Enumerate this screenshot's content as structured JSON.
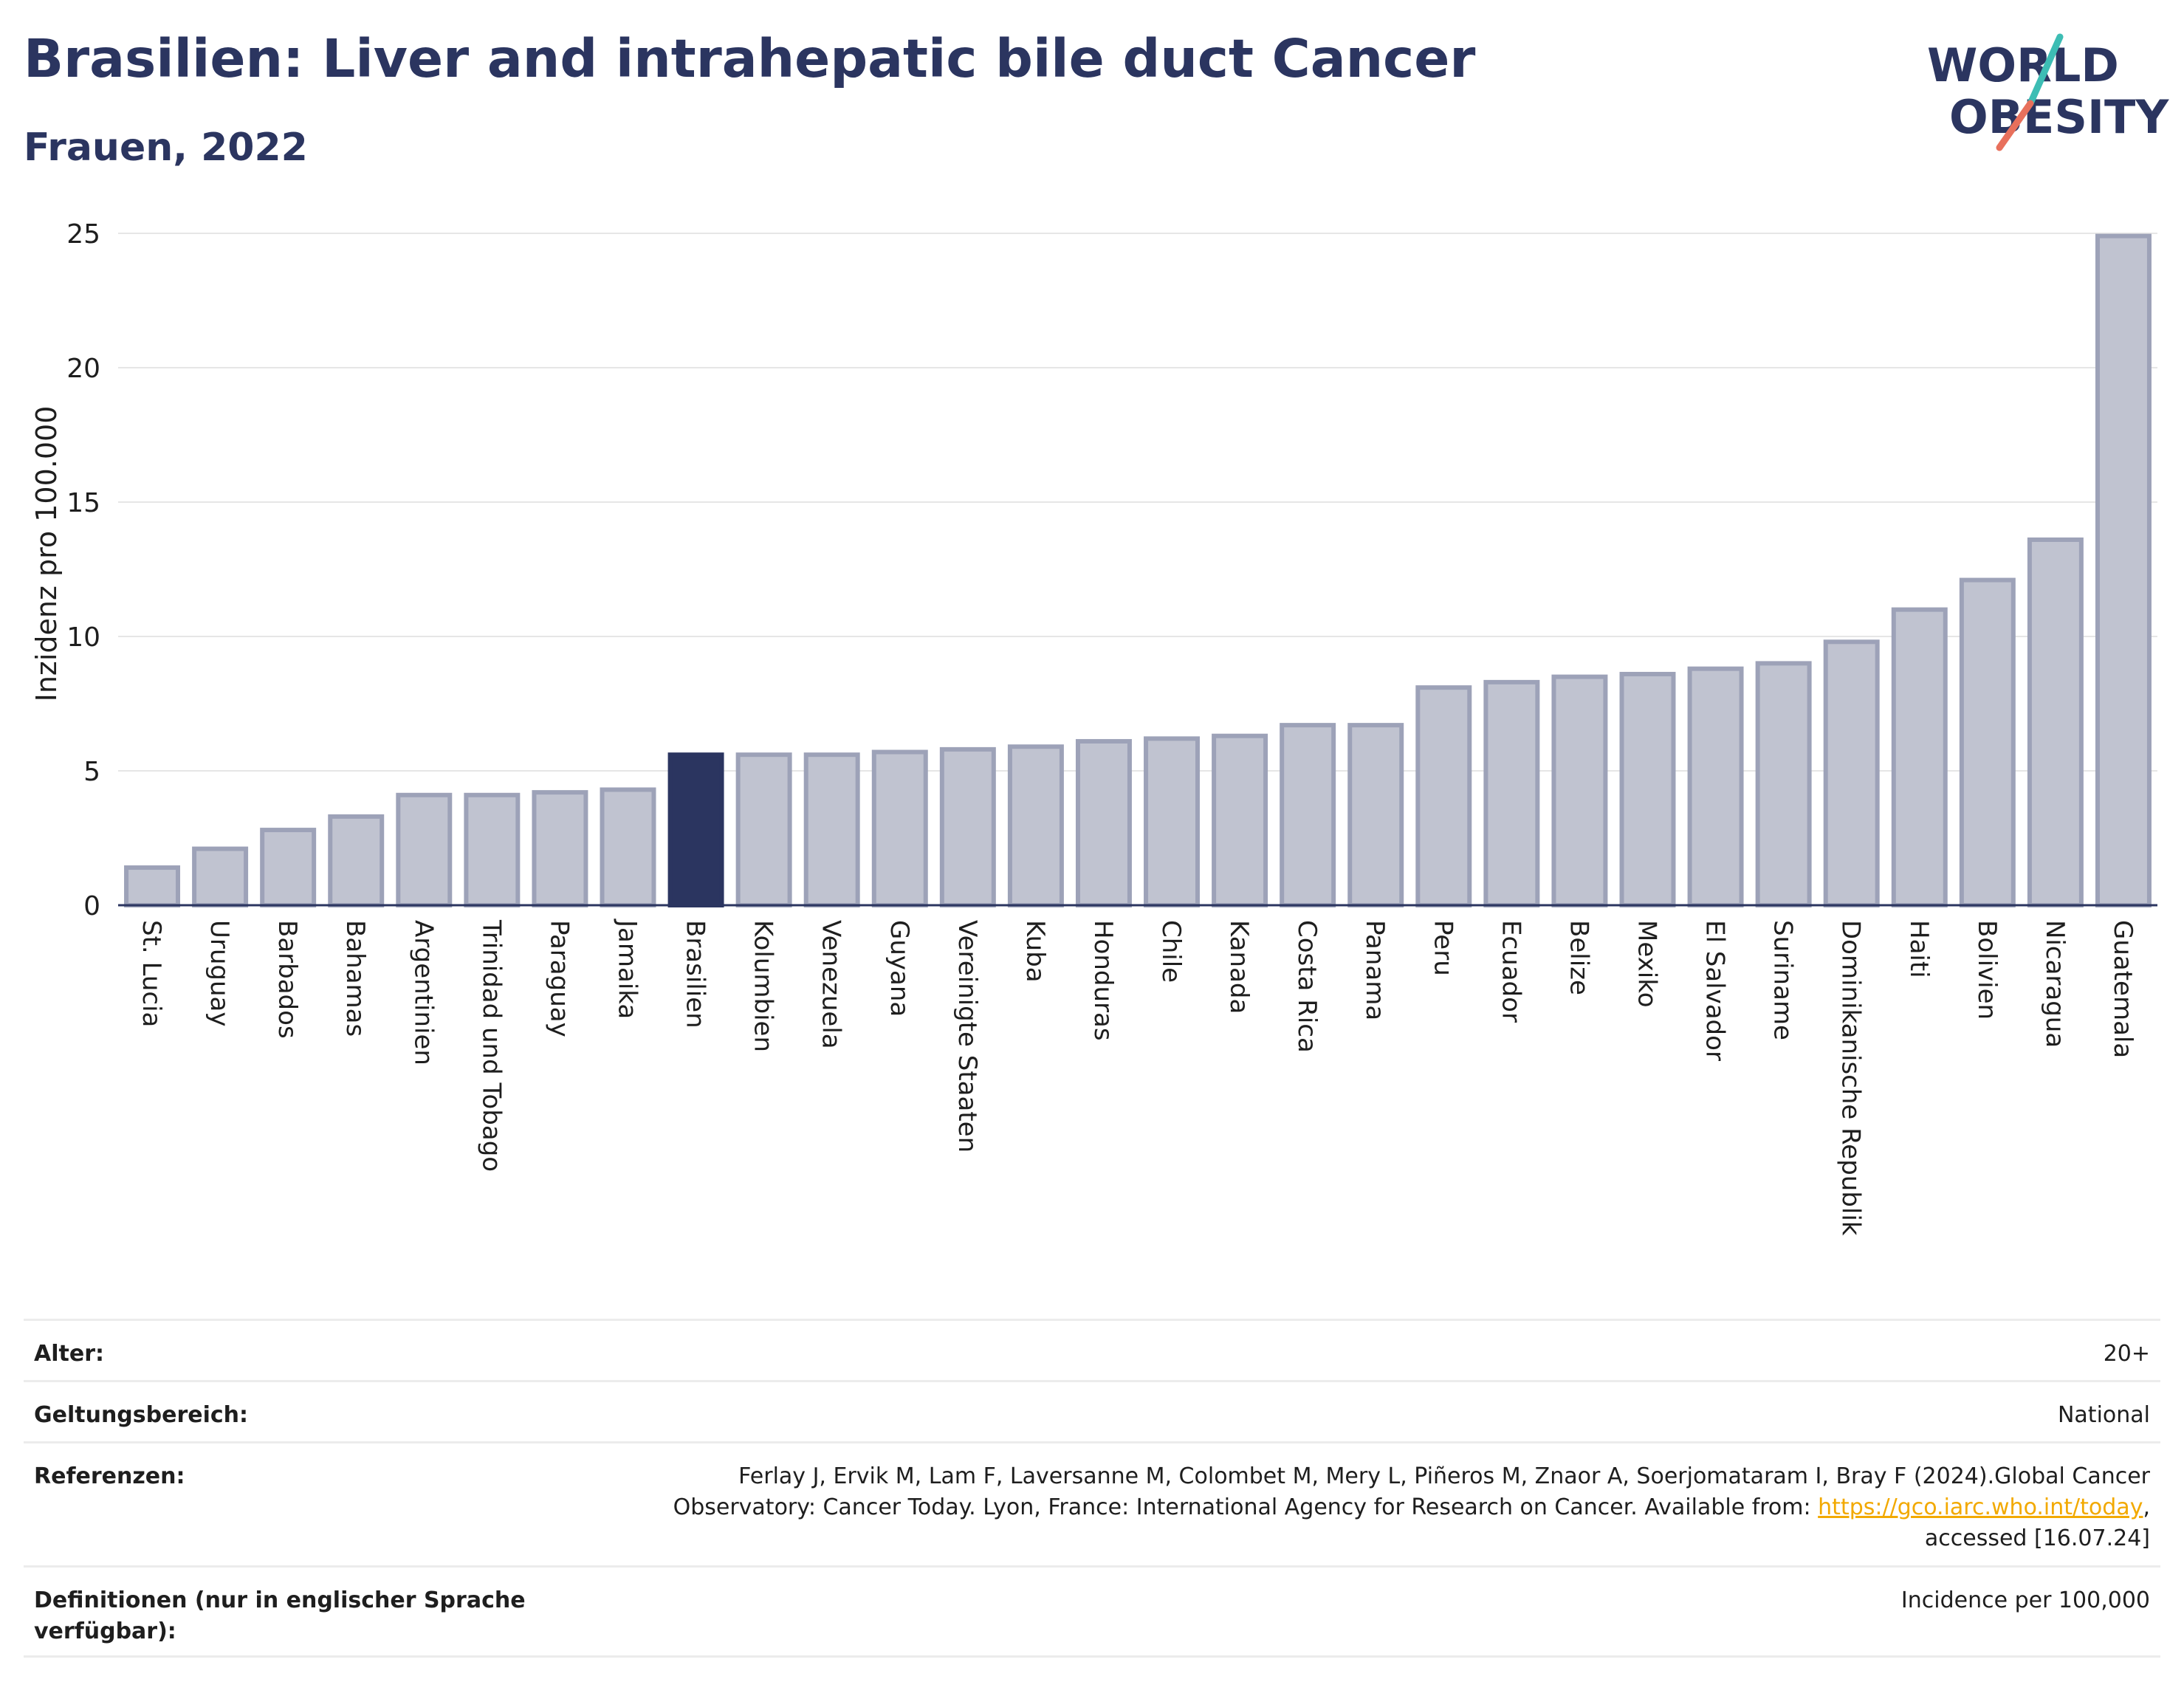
{
  "header": {
    "title": "Brasilien: Liver and intrahepatic bile duct Cancer",
    "subtitle": "Frauen, 2022",
    "logo_line1": "WORLD",
    "logo_line2": "OBESITY"
  },
  "colors": {
    "highlight": "#2b3560",
    "bar_fill": "#c0c3d0",
    "bar_stroke": "#9da2b8",
    "title": "#2b3560",
    "link": "#f2a900",
    "logo_teal": "#3dbdb4",
    "logo_red": "#e8705c"
  },
  "chart_data": {
    "type": "bar",
    "ylabel": "Inzidenz pro 100.000",
    "xlabel": "",
    "ylim": [
      0,
      25
    ],
    "yticks": [
      0,
      5,
      10,
      15,
      20,
      25
    ],
    "grid": true,
    "highlight": "Brasilien",
    "categories": [
      "St. Lucia",
      "Uruguay",
      "Barbados",
      "Bahamas",
      "Argentinien",
      "Trinidad und Tobago",
      "Paraguay",
      "Jamaika",
      "Brasilien",
      "Kolumbien",
      "Venezuela",
      "Guyana",
      "Vereinigte Staaten",
      "Kuba",
      "Honduras",
      "Chile",
      "Kanada",
      "Costa Rica",
      "Panama",
      "Peru",
      "Ecuador",
      "Belize",
      "Mexiko",
      "El Salvador",
      "Suriname",
      "Dominikanische Republik",
      "Haiti",
      "Bolivien",
      "Nicaragua",
      "Guatemala"
    ],
    "values": [
      1.4,
      2.1,
      2.8,
      3.3,
      4.1,
      4.1,
      4.2,
      4.3,
      5.6,
      5.6,
      5.6,
      5.7,
      5.8,
      5.9,
      6.1,
      6.2,
      6.3,
      6.7,
      6.7,
      8.1,
      8.3,
      8.5,
      8.6,
      8.8,
      9.0,
      9.8,
      11.0,
      12.1,
      13.6,
      24.9
    ]
  },
  "meta": {
    "age_label": "Alter:",
    "age_value": "20+",
    "scope_label": "Geltungsbereich:",
    "scope_value": "National",
    "ref_label": "Referenzen:",
    "ref_text_1": "Ferlay J, Ervik M, Lam F, Laversanne M, Colombet M, Mery L, Piñeros M, Znaor A, Soerjomataram I, Bray F (2024).Global Cancer Observatory: Cancer Today. Lyon, France: International Agency for Research on Cancer. Available from: ",
    "ref_link": "https://gco.iarc.who.int/today",
    "ref_text_2": ", accessed [16.07.24]",
    "def_label": "Definitionen (nur in englischer Sprache verfügbar):",
    "def_value": "Incidence per 100,000"
  }
}
